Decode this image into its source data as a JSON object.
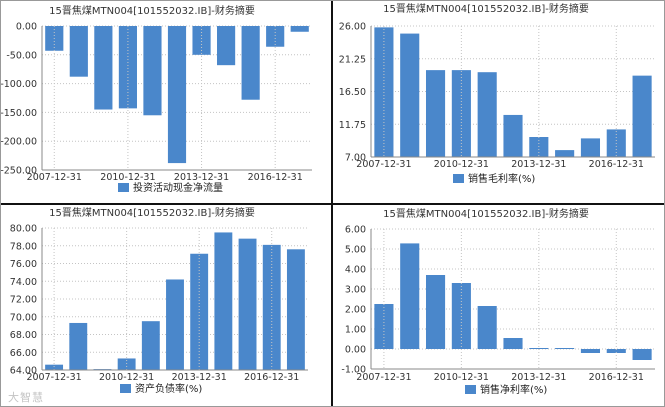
{
  "colors": {
    "bar": "#4a87cb",
    "grid": "#c4c4c4",
    "axis": "#888888",
    "text": "#333333"
  },
  "watermark": "大智慧",
  "chart_data": [
    {
      "type": "bar",
      "title": "15晋焦煤MTN004[101552032.IB]-财务摘要",
      "legend": "投资活动现金净流量",
      "ylim": [
        -250,
        0
      ],
      "yticks": [
        "0.00",
        "-50.00",
        "-100.00",
        "-150.00",
        "-200.00",
        "-250.00"
      ],
      "xticks": [
        "2007-12-31",
        "2010-12-31",
        "2013-12-31",
        "2016-12-31"
      ],
      "values": [
        -43,
        -88,
        -145,
        -143,
        -155,
        -238,
        -50,
        -68,
        -128,
        -36,
        -10
      ]
    },
    {
      "type": "bar",
      "title": "15晋焦煤MTN004[101552032.IB]-财务摘要",
      "legend": "销售毛利率(%)",
      "ylim": [
        7,
        26
      ],
      "yticks": [
        "26.00",
        "21.25",
        "16.50",
        "11.75",
        "7.00"
      ],
      "xticks": [
        "2007-12-31",
        "2010-12-31",
        "2013-12-31",
        "2016-12-31"
      ],
      "values": [
        25.8,
        24.9,
        19.6,
        19.6,
        19.3,
        13.1,
        9.9,
        8.0,
        9.7,
        11.0,
        18.8
      ]
    },
    {
      "type": "bar",
      "title": "15晋焦煤MTN004[101552032.IB]-财务摘要",
      "legend": "资产负债率(%)",
      "ylim": [
        64,
        80
      ],
      "yticks": [
        "80.00",
        "78.00",
        "76.00",
        "74.00",
        "72.00",
        "70.00",
        "68.00",
        "66.00",
        "64.00"
      ],
      "xticks": [
        "2007-12-31",
        "2010-12-31",
        "2013-12-31",
        "2016-12-31"
      ],
      "values": [
        64.6,
        69.3,
        64.1,
        65.3,
        69.5,
        74.2,
        77.1,
        79.5,
        78.8,
        78.1,
        77.6
      ]
    },
    {
      "type": "bar",
      "title": "15晋焦煤MTN004[101552032.IB]-财务摘要",
      "legend": "销售净利率(%)",
      "ylim": [
        -1,
        6
      ],
      "yticks": [
        "6.00",
        "5.00",
        "4.00",
        "3.00",
        "2.00",
        "1.00",
        "0.00",
        "-1.00"
      ],
      "xticks": [
        "2007-12-31",
        "2010-12-31",
        "2013-12-31",
        "2016-12-31"
      ],
      "values": [
        2.25,
        5.28,
        3.7,
        3.3,
        2.15,
        0.55,
        0.05,
        0.05,
        -0.2,
        -0.2,
        -0.55
      ]
    }
  ]
}
